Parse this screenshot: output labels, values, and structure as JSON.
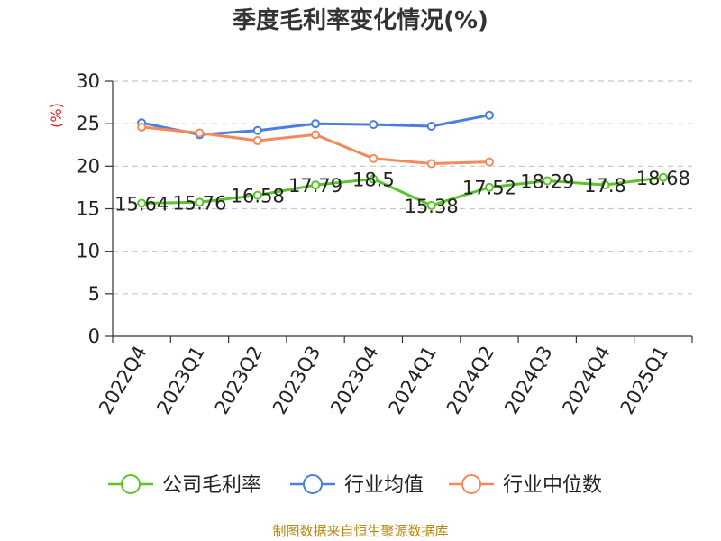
{
  "chart_data": {
    "type": "line",
    "title": "季度毛利率变化情况(%)",
    "unit_label": "(%)",
    "categories": [
      "2022Q4",
      "2023Q1",
      "2023Q2",
      "2023Q3",
      "2023Q4",
      "2024Q1",
      "2024Q2",
      "2024Q3",
      "2024Q4",
      "2025Q1"
    ],
    "ylim": [
      0,
      30
    ],
    "yticks": [
      0,
      5,
      10,
      15,
      20,
      25,
      30
    ],
    "grid": true,
    "legend_position": "bottom",
    "series": [
      {
        "name": "公司毛利率",
        "color": "#5cc42b",
        "values": [
          15.64,
          15.76,
          16.58,
          17.79,
          18.5,
          15.38,
          17.52,
          18.29,
          17.8,
          18.68
        ],
        "labels": [
          "15.64",
          "15.76",
          "16.58",
          "17.79",
          "18.5",
          "15.38",
          "17.52",
          "18.29",
          "17.8",
          "18.68"
        ]
      },
      {
        "name": "行业均值",
        "color": "#4a7fe0",
        "values": [
          25.1,
          23.7,
          24.2,
          25.0,
          24.9,
          24.7,
          26.0,
          null,
          null,
          null
        ]
      },
      {
        "name": "行业中位数",
        "color": "#f5895a",
        "values": [
          24.6,
          23.9,
          23.0,
          23.7,
          20.9,
          20.3,
          20.5,
          null,
          null,
          null
        ]
      }
    ]
  },
  "source": "制图数据来自恒生聚源数据库"
}
